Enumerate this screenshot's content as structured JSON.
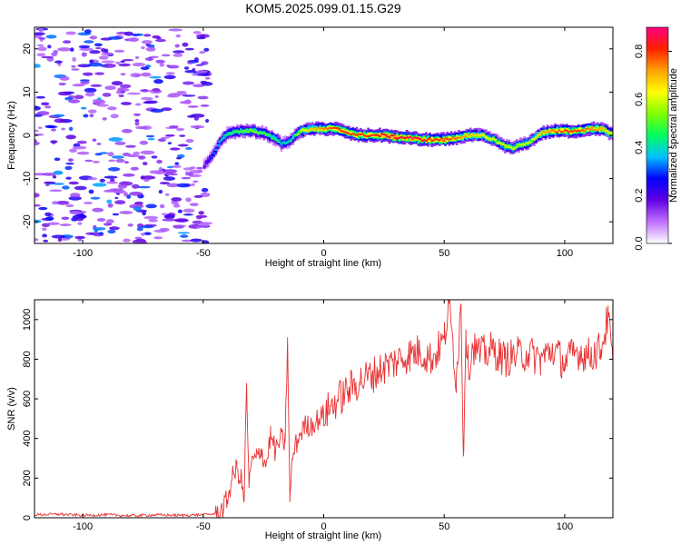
{
  "title": "KOM5.2025.099.01.15.G29",
  "chart_data": [
    {
      "type": "heatmap",
      "xlabel": "Height of straight line (km)",
      "ylabel": "Frequency (Hz)",
      "xlim": [
        -120,
        120
      ],
      "ylim": [
        -25,
        25
      ],
      "x_ticks": [
        "-100",
        "-50",
        "0",
        "50",
        "100"
      ],
      "x_tick_values": [
        -100,
        -50,
        0,
        50,
        100
      ],
      "y_ticks": [
        "-20",
        "-10",
        "0",
        "10",
        "20"
      ],
      "y_tick_values": [
        -20,
        -10,
        0,
        10,
        20
      ],
      "colorbar": {
        "label": "Normalized spectral amplitude",
        "range": [
          0,
          0.9
        ],
        "ticks": [
          "0.0",
          "0.2",
          "0.4",
          "0.6",
          "0.8"
        ],
        "tick_values": [
          0,
          0.2,
          0.4,
          0.6,
          0.8
        ],
        "colors": [
          "#ffffff",
          "#c070ff",
          "#6000e0",
          "#0000ff",
          "#00c0ff",
          "#00ff60",
          "#80ff00",
          "#ffff00",
          "#ffa000",
          "#ff2000",
          "#ff0080"
        ]
      },
      "noise_region": {
        "x_range": [
          -120,
          -48
        ],
        "y_range": [
          -25,
          25
        ]
      },
      "ridge": {
        "x": [
          -50,
          -47,
          -45,
          -43,
          -40,
          -35,
          -30,
          -25,
          -20,
          -18,
          -15,
          -12,
          -10,
          -5,
          0,
          5,
          10,
          15,
          20,
          25,
          30,
          35,
          40,
          45,
          50,
          55,
          60,
          65,
          70,
          75,
          78,
          80,
          85,
          90,
          95,
          100,
          105,
          110,
          115,
          120
        ],
        "y": [
          -7,
          -5,
          -3,
          -1,
          0.5,
          1,
          1,
          0.5,
          -1,
          -2,
          -1.5,
          0,
          1,
          1.5,
          1.5,
          1.5,
          0.5,
          0,
          0,
          0,
          -0.5,
          -0.5,
          -1,
          -1,
          -1,
          -0.5,
          0,
          0,
          -1,
          -2.5,
          -3,
          -2.5,
          -1.5,
          0.5,
          1,
          1,
          1,
          1.5,
          1.5,
          0
        ],
        "amplitude": [
          0.2,
          0.3,
          0.35,
          0.4,
          0.45,
          0.5,
          0.55,
          0.5,
          0.45,
          0.4,
          0.4,
          0.5,
          0.6,
          0.7,
          0.75,
          0.8,
          0.8,
          0.8,
          0.8,
          0.85,
          0.85,
          0.85,
          0.85,
          0.8,
          0.8,
          0.75,
          0.7,
          0.65,
          0.6,
          0.6,
          0.6,
          0.6,
          0.6,
          0.7,
          0.75,
          0.8,
          0.8,
          0.75,
          0.7,
          0.6
        ]
      }
    },
    {
      "type": "line",
      "xlabel": "Height of straight line (km)",
      "ylabel": "SNR (v/v)",
      "xlim": [
        -120,
        120
      ],
      "ylim": [
        0,
        1100
      ],
      "x_ticks": [
        "-100",
        "-50",
        "0",
        "50",
        "100"
      ],
      "x_tick_values": [
        -100,
        -50,
        0,
        50,
        100
      ],
      "y_ticks": [
        "0",
        "200",
        "400",
        "600",
        "800",
        "1000"
      ],
      "y_tick_values": [
        0,
        200,
        400,
        600,
        800,
        1000
      ],
      "color": "#e83030",
      "series": [
        {
          "x": [
            -120,
            -110,
            -100,
            -90,
            -80,
            -70,
            -60,
            -50,
            -45,
            -42,
            -40,
            -38,
            -36,
            -34,
            -33,
            -32,
            -31,
            -30,
            -28,
            -26,
            -24,
            -22,
            -20,
            -18,
            -16,
            -15,
            -14,
            -13,
            -12,
            -10,
            -8,
            -5,
            -2,
            0,
            3,
            6,
            10,
            15,
            20,
            25,
            30,
            35,
            40,
            45,
            50,
            52,
            55,
            57,
            58,
            59,
            60,
            62,
            65,
            70,
            75,
            80,
            85,
            90,
            95,
            100,
            105,
            110,
            115,
            118,
            120
          ],
          "y": [
            15,
            18,
            12,
            15,
            10,
            14,
            12,
            15,
            20,
            40,
            90,
            200,
            250,
            180,
            80,
            680,
            150,
            280,
            300,
            350,
            260,
            420,
            330,
            400,
            380,
            900,
            80,
            300,
            350,
            420,
            460,
            470,
            500,
            520,
            560,
            600,
            640,
            690,
            720,
            760,
            790,
            820,
            840,
            800,
            900,
            1080,
            700,
            1080,
            310,
            950,
            760,
            870,
            820,
            850,
            800,
            820,
            830,
            800,
            850,
            780,
            840,
            820,
            850,
            1010,
            780
          ]
        }
      ]
    }
  ]
}
